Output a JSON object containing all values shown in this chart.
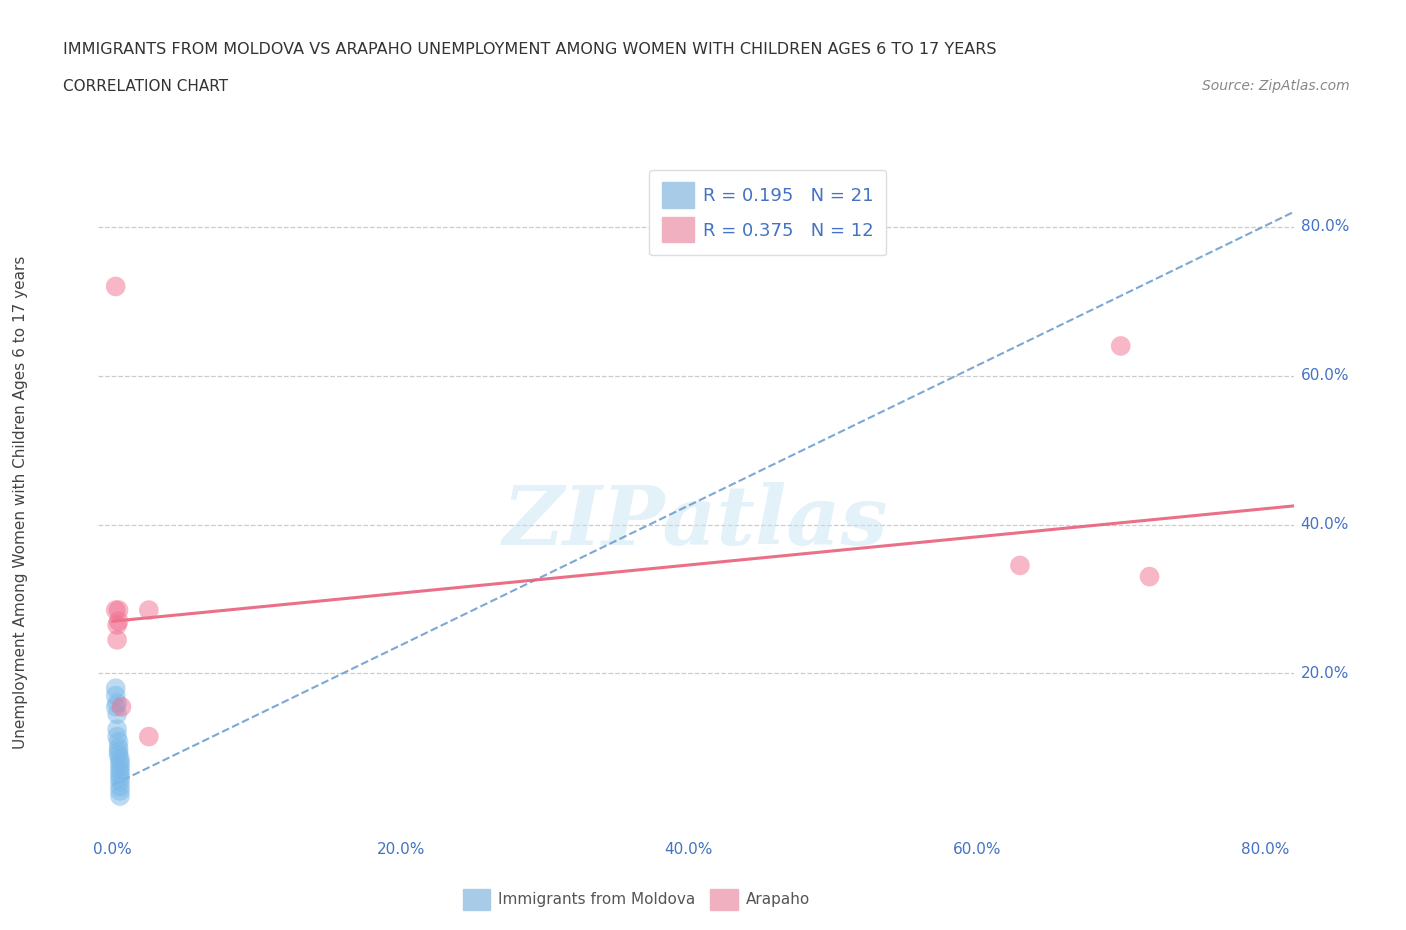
{
  "title": "IMMIGRANTS FROM MOLDOVA VS ARAPAHO UNEMPLOYMENT AMONG WOMEN WITH CHILDREN AGES 6 TO 17 YEARS",
  "subtitle": "CORRELATION CHART",
  "source": "Source: ZipAtlas.com",
  "ylabel": "Unemployment Among Women with Children Ages 6 to 17 years",
  "watermark": "ZIPatlas",
  "xlim": [
    -0.01,
    0.82
  ],
  "ylim": [
    -0.02,
    0.88
  ],
  "xticks": [
    0.0,
    0.2,
    0.4,
    0.6,
    0.8
  ],
  "xtick_labels": [
    "0.0%",
    "20.0%",
    "40.0%",
    "60.0%",
    "80.0%"
  ],
  "ytick_vals": [
    0.2,
    0.4,
    0.6,
    0.8
  ],
  "ytick_labels": [
    "20.0%",
    "40.0%",
    "60.0%",
    "80.0%"
  ],
  "legend_r1": "R = 0.195   N = 21",
  "legend_r2": "R = 0.375   N = 12",
  "legend_label1": "Immigrants from Moldova",
  "legend_label2": "Arapaho",
  "blue_color": "#7ab8e8",
  "pink_color": "#f07090",
  "blue_line_color": "#6699cc",
  "pink_line_color": "#e8607a",
  "blue_scatter": [
    [
      0.002,
      0.155
    ],
    [
      0.002,
      0.17
    ],
    [
      0.002,
      0.18
    ],
    [
      0.003,
      0.16
    ],
    [
      0.003,
      0.145
    ],
    [
      0.003,
      0.125
    ],
    [
      0.003,
      0.115
    ],
    [
      0.004,
      0.108
    ],
    [
      0.004,
      0.1
    ],
    [
      0.004,
      0.095
    ],
    [
      0.004,
      0.09
    ],
    [
      0.005,
      0.085
    ],
    [
      0.005,
      0.08
    ],
    [
      0.005,
      0.075
    ],
    [
      0.005,
      0.07
    ],
    [
      0.005,
      0.065
    ],
    [
      0.005,
      0.06
    ],
    [
      0.005,
      0.055
    ],
    [
      0.005,
      0.048
    ],
    [
      0.005,
      0.042
    ],
    [
      0.005,
      0.035
    ]
  ],
  "pink_scatter": [
    [
      0.002,
      0.72
    ],
    [
      0.002,
      0.285
    ],
    [
      0.003,
      0.265
    ],
    [
      0.003,
      0.245
    ],
    [
      0.004,
      0.285
    ],
    [
      0.004,
      0.27
    ],
    [
      0.006,
      0.155
    ],
    [
      0.025,
      0.285
    ],
    [
      0.025,
      0.115
    ],
    [
      0.63,
      0.345
    ],
    [
      0.7,
      0.64
    ],
    [
      0.72,
      0.33
    ]
  ],
  "blue_trend_x": [
    0.0,
    0.82
  ],
  "blue_trend_y": [
    0.05,
    0.82
  ],
  "pink_trend_x": [
    0.0,
    0.82
  ],
  "pink_trend_y": [
    0.27,
    0.425
  ],
  "background_color": "#ffffff",
  "grid_color": "#cccccc",
  "grid_style": "--",
  "label_color": "#4472c4"
}
